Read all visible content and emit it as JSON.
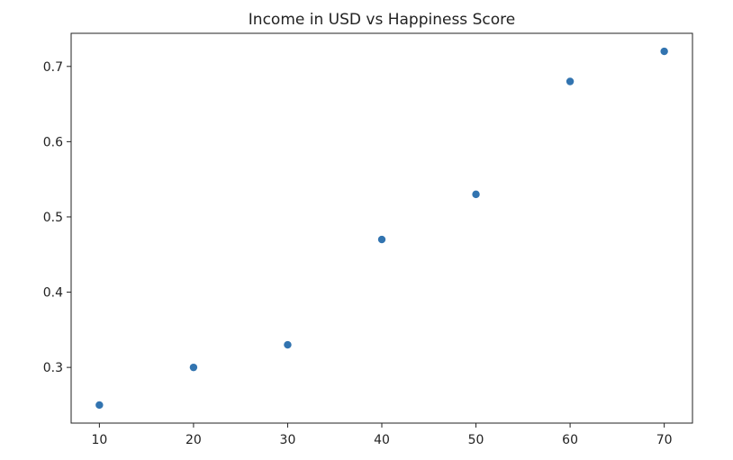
{
  "chart_data": {
    "type": "scatter",
    "title": "Income in USD vs Happiness Score",
    "xlabel": "",
    "ylabel": "",
    "x": [
      10,
      20,
      30,
      40,
      50,
      60,
      70
    ],
    "y": [
      0.25,
      0.3,
      0.33,
      0.47,
      0.53,
      0.68,
      0.72
    ],
    "xlim": [
      7,
      73
    ],
    "ylim": [
      0.226,
      0.744
    ],
    "xticks": [
      10,
      20,
      30,
      40,
      50,
      60,
      70
    ],
    "yticks": [
      0.3,
      0.4,
      0.5,
      0.6,
      0.7
    ],
    "xtick_labels": [
      "10",
      "20",
      "30",
      "40",
      "50",
      "60",
      "70"
    ],
    "ytick_labels": [
      "0.3",
      "0.4",
      "0.5",
      "0.6",
      "0.7"
    ],
    "grid": false,
    "marker_color": "#3274b0"
  }
}
